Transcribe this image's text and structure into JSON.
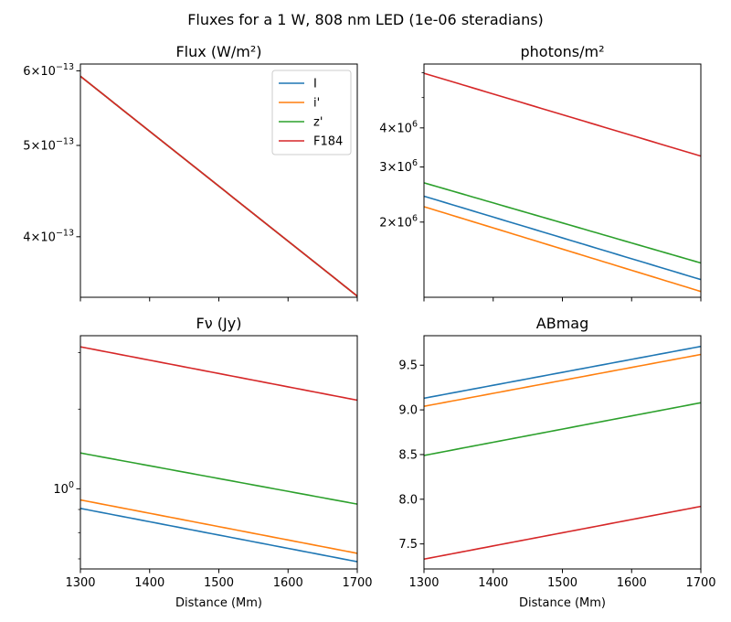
{
  "figure": {
    "suptitle": "Fluxes for a 1 W, 808 nm LED (1e-06 steradians)"
  },
  "colors": {
    "I": "#1f77b4",
    "i'": "#ff7f0e",
    "z'": "#2ca02c",
    "F184": "#d62728"
  },
  "chart_data": [
    {
      "type": "line",
      "title": "Flux (W/m²)",
      "xlabel": "",
      "ylabel": "",
      "yscale": "log",
      "xlim": [
        1300,
        1700
      ],
      "ylim": [
        3.45e-13,
        6.1e-13
      ],
      "xticks": [
        1300,
        1400,
        1500,
        1600,
        1700
      ],
      "show_xticklabels": false,
      "yticks": [
        {
          "value": 6e-13,
          "mant": "6",
          "exp": "−13"
        },
        {
          "value": 5e-13,
          "mant": "5",
          "exp": "−13"
        },
        {
          "value": 4e-13,
          "mant": "4",
          "exp": "−13"
        }
      ],
      "legend": {
        "placement": "top-right",
        "entries": [
          "I",
          "i'",
          "z'",
          "F184"
        ]
      },
      "series": [
        {
          "name": "I",
          "x": [
            1300,
            1700
          ],
          "y": [
            5.92e-13,
            3.46e-13
          ]
        },
        {
          "name": "i'",
          "x": [
            1300,
            1700
          ],
          "y": [
            5.92e-13,
            3.46e-13
          ]
        },
        {
          "name": "z'",
          "x": [
            1300,
            1700
          ],
          "y": [
            5.92e-13,
            3.46e-13
          ]
        },
        {
          "name": "F184",
          "x": [
            1300,
            1700
          ],
          "y": [
            5.92e-13,
            3.46e-13
          ]
        }
      ]
    },
    {
      "type": "line",
      "title": "photons/m²",
      "xlabel": "",
      "ylabel": "",
      "yscale": "log",
      "xlim": [
        1300,
        1700
      ],
      "ylim": [
        1150000.0,
        6400000.0
      ],
      "xticks": [
        1300,
        1400,
        1500,
        1600,
        1700
      ],
      "show_xticklabels": false,
      "yticks": [
        {
          "value": 4000000.0,
          "mant": "4",
          "exp": "6"
        },
        {
          "value": 3000000.0,
          "mant": "3",
          "exp": "6"
        },
        {
          "value": 2000000.0,
          "mant": "2",
          "exp": "6"
        }
      ],
      "yminorticks": [
        5000000.0,
        6000000.0
      ],
      "series": [
        {
          "name": "I",
          "x": [
            1300,
            1700
          ],
          "y": [
            2420000.0,
            1310000.0
          ]
        },
        {
          "name": "i'",
          "x": [
            1300,
            1700
          ],
          "y": [
            2240000.0,
            1200000.0
          ]
        },
        {
          "name": "z'",
          "x": [
            1300,
            1700
          ],
          "y": [
            2670000.0,
            1480000.0
          ]
        },
        {
          "name": "F184",
          "x": [
            1300,
            1700
          ],
          "y": [
            5980000.0,
            3250000.0
          ]
        }
      ]
    },
    {
      "type": "line",
      "title": "Fν (Jy)",
      "xlabel": "Distance (Mm)",
      "ylabel": "",
      "yscale": "log",
      "xlim": [
        1300,
        1700
      ],
      "ylim": [
        0.665,
        2.18
      ],
      "xticks": [
        1300,
        1400,
        1500,
        1600,
        1700
      ],
      "show_xticklabels": true,
      "yticks": [
        {
          "value": 1.0,
          "mant": "",
          "exp": "0"
        }
      ],
      "yminorticks": [
        0.7,
        0.8,
        0.9,
        1.5,
        2.0
      ],
      "series": [
        {
          "name": "I",
          "x": [
            1300,
            1700
          ],
          "y": [
            0.905,
            0.69
          ]
        },
        {
          "name": "i'",
          "x": [
            1300,
            1700
          ],
          "y": [
            0.945,
            0.72
          ]
        },
        {
          "name": "z'",
          "x": [
            1300,
            1700
          ],
          "y": [
            1.2,
            0.925
          ]
        },
        {
          "name": "F184",
          "x": [
            1300,
            1700
          ],
          "y": [
            2.06,
            1.57
          ]
        }
      ]
    },
    {
      "type": "line",
      "title": "ABmag",
      "xlabel": "Distance (Mm)",
      "ylabel": "",
      "yscale": "linear",
      "xlim": [
        1300,
        1700
      ],
      "ylim": [
        7.22,
        9.83
      ],
      "xticks": [
        1300,
        1400,
        1500,
        1600,
        1700
      ],
      "show_xticklabels": true,
      "yticks": [
        {
          "value": 7.5,
          "label": "7.5"
        },
        {
          "value": 8.0,
          "label": "8.0"
        },
        {
          "value": 8.5,
          "label": "8.5"
        },
        {
          "value": 9.0,
          "label": "9.0"
        },
        {
          "value": 9.5,
          "label": "9.5"
        }
      ],
      "series": [
        {
          "name": "I",
          "x": [
            1300,
            1700
          ],
          "y": [
            9.13,
            9.71
          ]
        },
        {
          "name": "i'",
          "x": [
            1300,
            1700
          ],
          "y": [
            9.04,
            9.62
          ]
        },
        {
          "name": "z'",
          "x": [
            1300,
            1700
          ],
          "y": [
            8.49,
            9.08
          ]
        },
        {
          "name": "F184",
          "x": [
            1300,
            1700
          ],
          "y": [
            7.33,
            7.92
          ]
        }
      ]
    }
  ]
}
